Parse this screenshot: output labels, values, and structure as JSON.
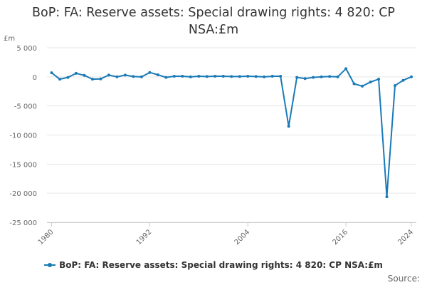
{
  "title_line1": "BoP: FA: Reserve assets: Special drawing rights: 4 820: CP",
  "title_line2": "NSA:£m",
  "unit_label": "£m",
  "legend_label": "BoP: FA: Reserve assets: Special drawing rights: 4 820: CP NSA:£m",
  "source_label": "Source:",
  "series_color": "#1a7ab7",
  "chart_data": {
    "type": "line",
    "title": "BoP: FA: Reserve assets: Special drawing rights: 4 820: CP NSA:£m",
    "xlabel": "",
    "ylabel": "£m",
    "grid": "horizontal",
    "legend_position": "bottom",
    "xlim": [
      1980,
      2024
    ],
    "ylim": [
      -25000,
      5000
    ],
    "y_ticks": [
      5000,
      0,
      -5000,
      -10000,
      -15000,
      -20000,
      -25000
    ],
    "y_tick_labels": [
      "5 000",
      "0",
      "-5 000",
      "-10 000",
      "-15 000",
      "-20 000",
      "-25 000"
    ],
    "x_ticks": [
      1980,
      1992,
      2004,
      2016,
      2024
    ],
    "x_tick_labels": [
      "1980",
      "1992",
      "2004",
      "2016",
      "2024"
    ],
    "series": [
      {
        "name": "BoP: FA: Reserve assets: Special drawing rights: 4 820: CP NSA:£m",
        "x": [
          1980,
          1981,
          1982,
          1983,
          1984,
          1985,
          1986,
          1987,
          1988,
          1989,
          1990,
          1991,
          1992,
          1993,
          1994,
          1995,
          1996,
          1997,
          1998,
          1999,
          2000,
          2001,
          2002,
          2003,
          2004,
          2005,
          2006,
          2007,
          2008,
          2009,
          2010,
          2011,
          2012,
          2013,
          2014,
          2015,
          2016,
          2017,
          2018,
          2019,
          2020,
          2021,
          2022,
          2023,
          2024
        ],
        "values": [
          700,
          -400,
          -100,
          600,
          250,
          -400,
          -350,
          300,
          0,
          300,
          50,
          0,
          750,
          350,
          -100,
          100,
          100,
          0,
          100,
          50,
          100,
          100,
          50,
          50,
          100,
          50,
          0,
          100,
          100,
          -8500,
          -100,
          -300,
          -100,
          0,
          50,
          0,
          1400,
          -1200,
          -1600,
          -900,
          -400,
          -20600,
          -1500,
          -600,
          0
        ]
      }
    ]
  }
}
